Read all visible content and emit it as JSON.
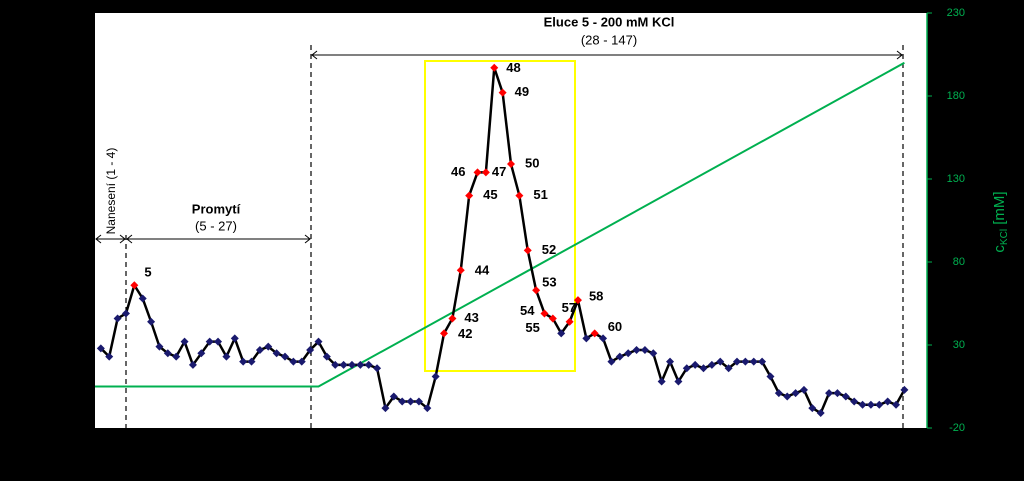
{
  "chart_data": {
    "type": "line",
    "title": "Eluce 5 - 200 mM KCl",
    "subtitle": "(28 - 147)",
    "annotations": {
      "loading": "Nanesení (1 - 4)",
      "wash": "Promytí",
      "wash_range": "(5 - 27)"
    },
    "y2_label_parts": [
      "c",
      "KCl",
      " [mM]"
    ],
    "x": [
      1,
      2,
      3,
      4,
      5,
      6,
      7,
      8,
      9,
      10,
      11,
      12,
      13,
      14,
      15,
      16,
      17,
      18,
      19,
      20,
      21,
      22,
      23,
      24,
      25,
      26,
      27,
      28,
      29,
      30,
      31,
      32,
      33,
      34,
      35,
      36,
      37,
      38,
      39,
      40,
      41,
      42,
      43,
      44,
      45,
      46,
      47,
      48,
      49,
      50,
      51,
      52,
      53,
      54,
      55,
      56,
      57,
      58,
      59,
      60,
      61,
      62,
      63,
      64,
      65,
      66,
      67,
      68,
      69,
      70,
      71,
      72,
      73,
      74,
      75,
      76,
      77,
      78,
      79,
      80,
      81,
      82,
      83,
      84,
      85,
      86,
      87,
      88,
      89,
      90,
      91,
      92,
      93,
      94,
      95,
      96,
      97
    ],
    "xlim": [
      0.3,
      99.7
    ],
    "ylim": [
      -20,
      230
    ],
    "y2lim": [
      -20,
      230
    ],
    "y2ticks": [
      -20,
      30,
      80,
      130,
      180,
      230
    ],
    "series": [
      {
        "color": "#000000",
        "marker_color": "#1a1a6e",
        "highlight_color": "#ff0000",
        "labeled_points": [
          5,
          42,
          43,
          44,
          45,
          46,
          47,
          48,
          49,
          50,
          51,
          52,
          53,
          54,
          55,
          57,
          58,
          60
        ],
        "values": [
          28,
          23,
          46,
          49,
          66,
          58,
          44,
          29,
          25,
          23,
          32,
          18,
          25,
          32,
          32,
          23,
          34,
          20,
          20,
          27,
          29,
          25,
          23,
          20,
          20,
          27,
          32,
          23,
          18,
          18,
          18,
          18,
          18,
          16,
          -8,
          -1,
          -4,
          -4,
          -4,
          -8,
          11,
          37,
          46,
          75,
          120,
          134,
          134,
          197,
          182,
          139,
          120,
          87,
          63,
          49,
          46,
          37,
          44,
          57,
          34,
          37,
          34,
          20,
          23,
          25,
          27,
          27,
          25,
          8,
          20,
          8,
          16,
          18,
          16,
          18,
          20,
          16,
          20,
          20,
          20,
          20,
          11,
          1,
          -1,
          1,
          3,
          -8,
          -11,
          1,
          1,
          -1,
          -4,
          -6,
          -6,
          -6,
          -4,
          -6,
          3
        ]
      },
      {
        "color": "#00b050",
        "axis": "y2",
        "x": [
          0.3,
          27,
          97
        ],
        "values": [
          5,
          5,
          200
        ]
      }
    ]
  }
}
